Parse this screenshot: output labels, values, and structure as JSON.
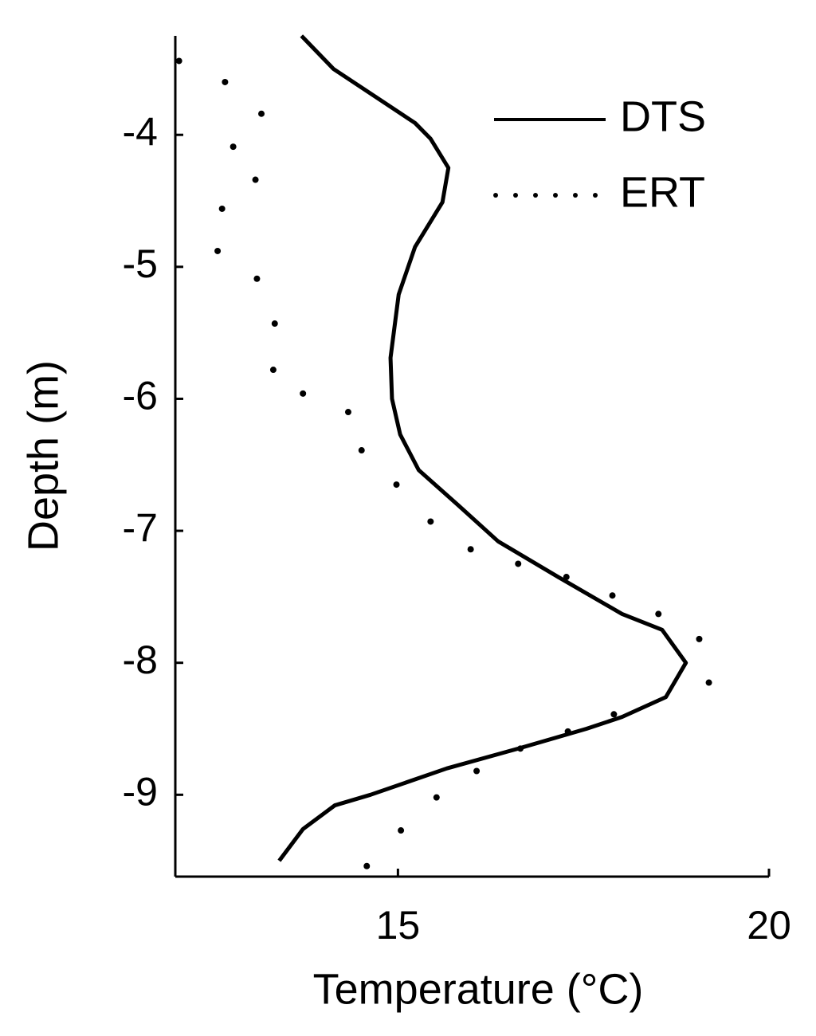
{
  "chart_data": {
    "type": "line",
    "x_label": "Temperature (°C)",
    "y_label": "Depth (m)",
    "xlim": [
      12,
      20
    ],
    "xticks": [
      15,
      20
    ],
    "ylim": [
      -9.62,
      -3.25
    ],
    "yticks": [
      -9,
      -8,
      -7,
      -6,
      -5,
      -4
    ],
    "legend": "top-right",
    "series": [
      {
        "name": "DTS",
        "color": "#000000",
        "style": "solid",
        "x": [
          13.7,
          14.13,
          15.23,
          15.44,
          15.68,
          15.6,
          15.23,
          15.01,
          14.9,
          14.92,
          15.03,
          15.28,
          15.82,
          16.35,
          17.16,
          18.02,
          18.56,
          18.88,
          18.61,
          18.02,
          17.54,
          16.62,
          15.66,
          14.63,
          14.15,
          13.72,
          13.4
        ],
        "y": [
          -3.25,
          -3.5,
          -3.91,
          -4.03,
          -4.25,
          -4.51,
          -4.85,
          -5.21,
          -5.69,
          -6.0,
          -6.27,
          -6.54,
          -6.81,
          -7.08,
          -7.35,
          -7.63,
          -7.75,
          -8.0,
          -8.26,
          -8.41,
          -8.5,
          -8.65,
          -8.8,
          -9.0,
          -9.08,
          -9.26,
          -9.5
        ]
      },
      {
        "name": "ERT",
        "color": "#000000",
        "style": "dotted",
        "x": [
          12.05,
          12.67,
          13.16,
          12.78,
          13.08,
          12.63,
          12.57,
          13.1,
          13.34,
          13.32,
          13.72,
          14.33,
          14.51,
          14.98,
          15.44,
          15.98,
          16.62,
          17.27,
          17.89,
          18.51,
          19.06,
          19.19,
          17.91,
          17.29,
          16.65,
          16.06,
          15.52,
          15.04,
          14.58
        ],
        "y": [
          -3.44,
          -3.6,
          -3.84,
          -4.09,
          -4.34,
          -4.56,
          -4.88,
          -5.09,
          -5.43,
          -5.78,
          -5.96,
          -6.1,
          -6.39,
          -6.65,
          -6.93,
          -7.14,
          -7.25,
          -7.35,
          -7.49,
          -7.63,
          -7.82,
          -8.15,
          -8.39,
          -8.52,
          -8.65,
          -8.82,
          -9.02,
          -9.27,
          -9.54
        ]
      }
    ]
  }
}
